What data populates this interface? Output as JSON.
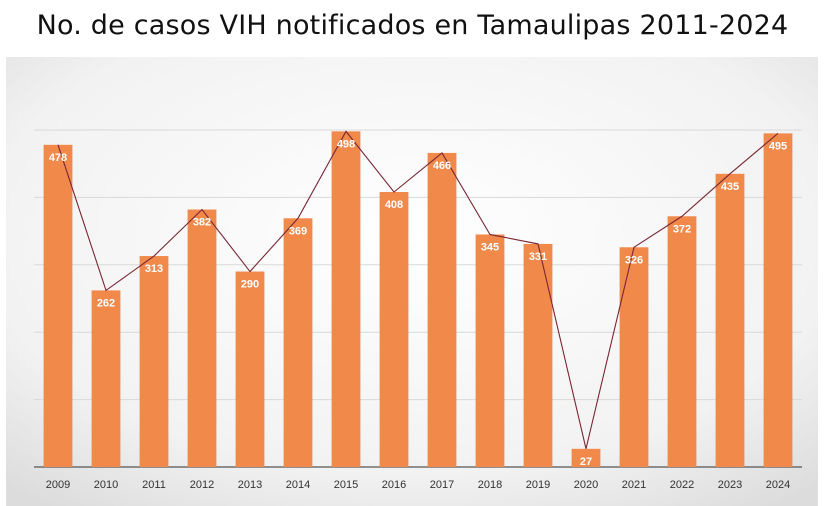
{
  "title": "No. de casos VIH notificados en Tamaulipas 2011-2024",
  "colors": {
    "bar": "#F0894A",
    "line": "#7A2633",
    "grid": "#D9D9D9",
    "axis": "#555555"
  },
  "chart_data": {
    "type": "bar",
    "title": "No. de casos VIH notificados en Tamaulipas 2011-2024",
    "categories": [
      "2009",
      "2010",
      "2011",
      "2012",
      "2013",
      "2014",
      "2015",
      "2016",
      "2017",
      "2018",
      "2019",
      "2020",
      "2021",
      "2022",
      "2023",
      "2024"
    ],
    "values": [
      478,
      262,
      313,
      382,
      290,
      369,
      498,
      408,
      466,
      345,
      331,
      27,
      326,
      372,
      435,
      495
    ],
    "overlay": "line",
    "xlabel": "",
    "ylabel": "",
    "ylim": [
      0,
      500
    ],
    "grid": true,
    "legend": "none"
  }
}
